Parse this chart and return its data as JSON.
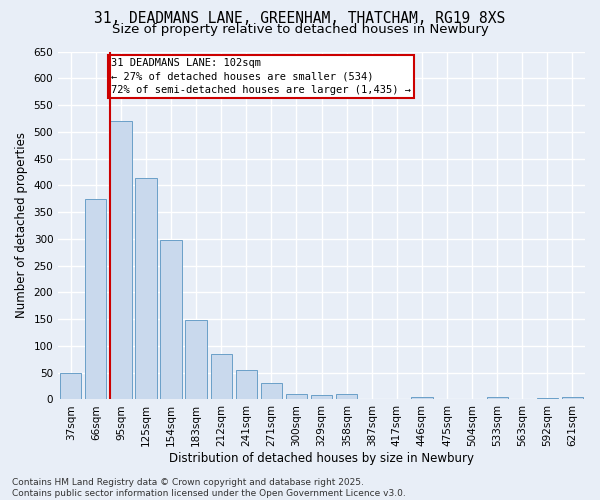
{
  "title_line1": "31, DEADMANS LANE, GREENHAM, THATCHAM, RG19 8XS",
  "title_line2": "Size of property relative to detached houses in Newbury",
  "xlabel": "Distribution of detached houses by size in Newbury",
  "ylabel": "Number of detached properties",
  "categories": [
    "37sqm",
    "66sqm",
    "95sqm",
    "125sqm",
    "154sqm",
    "183sqm",
    "212sqm",
    "241sqm",
    "271sqm",
    "300sqm",
    "329sqm",
    "358sqm",
    "387sqm",
    "417sqm",
    "446sqm",
    "475sqm",
    "504sqm",
    "533sqm",
    "563sqm",
    "592sqm",
    "621sqm"
  ],
  "values": [
    50,
    375,
    520,
    413,
    297,
    148,
    85,
    55,
    30,
    11,
    8,
    11,
    1,
    0,
    4,
    1,
    0,
    4,
    0,
    3,
    4
  ],
  "bar_color": "#c9d9ed",
  "bar_edge_color": "#6a9fc8",
  "red_line_index": 2,
  "annotation_text": "31 DEADMANS LANE: 102sqm\n← 27% of detached houses are smaller (534)\n72% of semi-detached houses are larger (1,435) →",
  "annotation_box_color": "#ffffff",
  "annotation_box_edge_color": "#cc0000",
  "annotation_text_color": "#000000",
  "red_line_color": "#cc0000",
  "ylim": [
    0,
    650
  ],
  "yticks": [
    0,
    50,
    100,
    150,
    200,
    250,
    300,
    350,
    400,
    450,
    500,
    550,
    600,
    650
  ],
  "footer_line1": "Contains HM Land Registry data © Crown copyright and database right 2025.",
  "footer_line2": "Contains public sector information licensed under the Open Government Licence v3.0.",
  "bg_color": "#e8eef7",
  "plot_bg_color": "#e8eef7",
  "grid_color": "#ffffff",
  "title_fontsize": 10.5,
  "subtitle_fontsize": 9.5,
  "axis_label_fontsize": 8.5,
  "tick_fontsize": 7.5,
  "footer_fontsize": 6.5,
  "annotation_fontsize": 7.5
}
